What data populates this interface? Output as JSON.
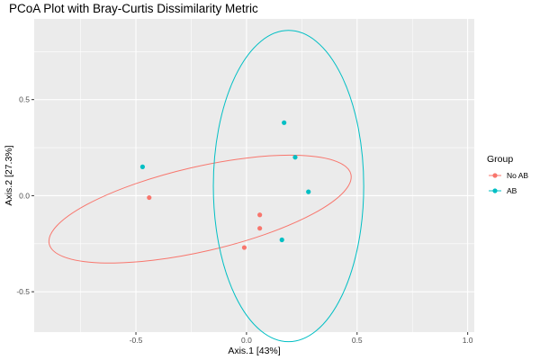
{
  "chart_data": {
    "type": "scatter",
    "title": "PCoA Plot with Bray-Curtis Dissimilarity Metric",
    "xlabel": "Axis.1   [43%]",
    "ylabel": "Axis.2   [27.3%]",
    "xlim": [
      -0.96,
      1.03
    ],
    "ylim": [
      -0.71,
      0.92
    ],
    "x_ticks": [
      -0.5,
      0.0,
      0.5,
      1.0
    ],
    "x_tick_labels": [
      "-0.5",
      "0.0",
      "0.5",
      "1.0"
    ],
    "y_ticks": [
      -0.5,
      0.0,
      0.5
    ],
    "y_tick_labels": [
      "-0.5",
      "0.0",
      "0.5"
    ],
    "grid": true,
    "legend": {
      "title": "Group",
      "position": "right",
      "entries": [
        "No AB",
        "AB"
      ]
    },
    "colors": {
      "No AB": "#F8766D",
      "AB": "#00BFC4",
      "panel": "#EBEBEB",
      "grid": "#FFFFFF"
    },
    "series": [
      {
        "name": "No AB",
        "x": [
          -0.44,
          0.06,
          0.06,
          -0.01
        ],
        "y": [
          -0.01,
          -0.1,
          -0.17,
          -0.27
        ]
      },
      {
        "name": "AB",
        "x": [
          -0.47,
          0.17,
          0.22,
          0.28,
          0.16
        ],
        "y": [
          0.15,
          0.38,
          0.2,
          0.02,
          -0.23
        ]
      }
    ],
    "ellipses": [
      {
        "group": "No AB",
        "cx": -0.21,
        "cy": -0.07,
        "rx": 0.7,
        "ry": 0.22,
        "angle_deg": -13
      },
      {
        "group": "AB",
        "cx": 0.19,
        "cy": 0.05,
        "rx": 0.34,
        "ry": 0.81,
        "angle_deg": 0
      }
    ]
  }
}
